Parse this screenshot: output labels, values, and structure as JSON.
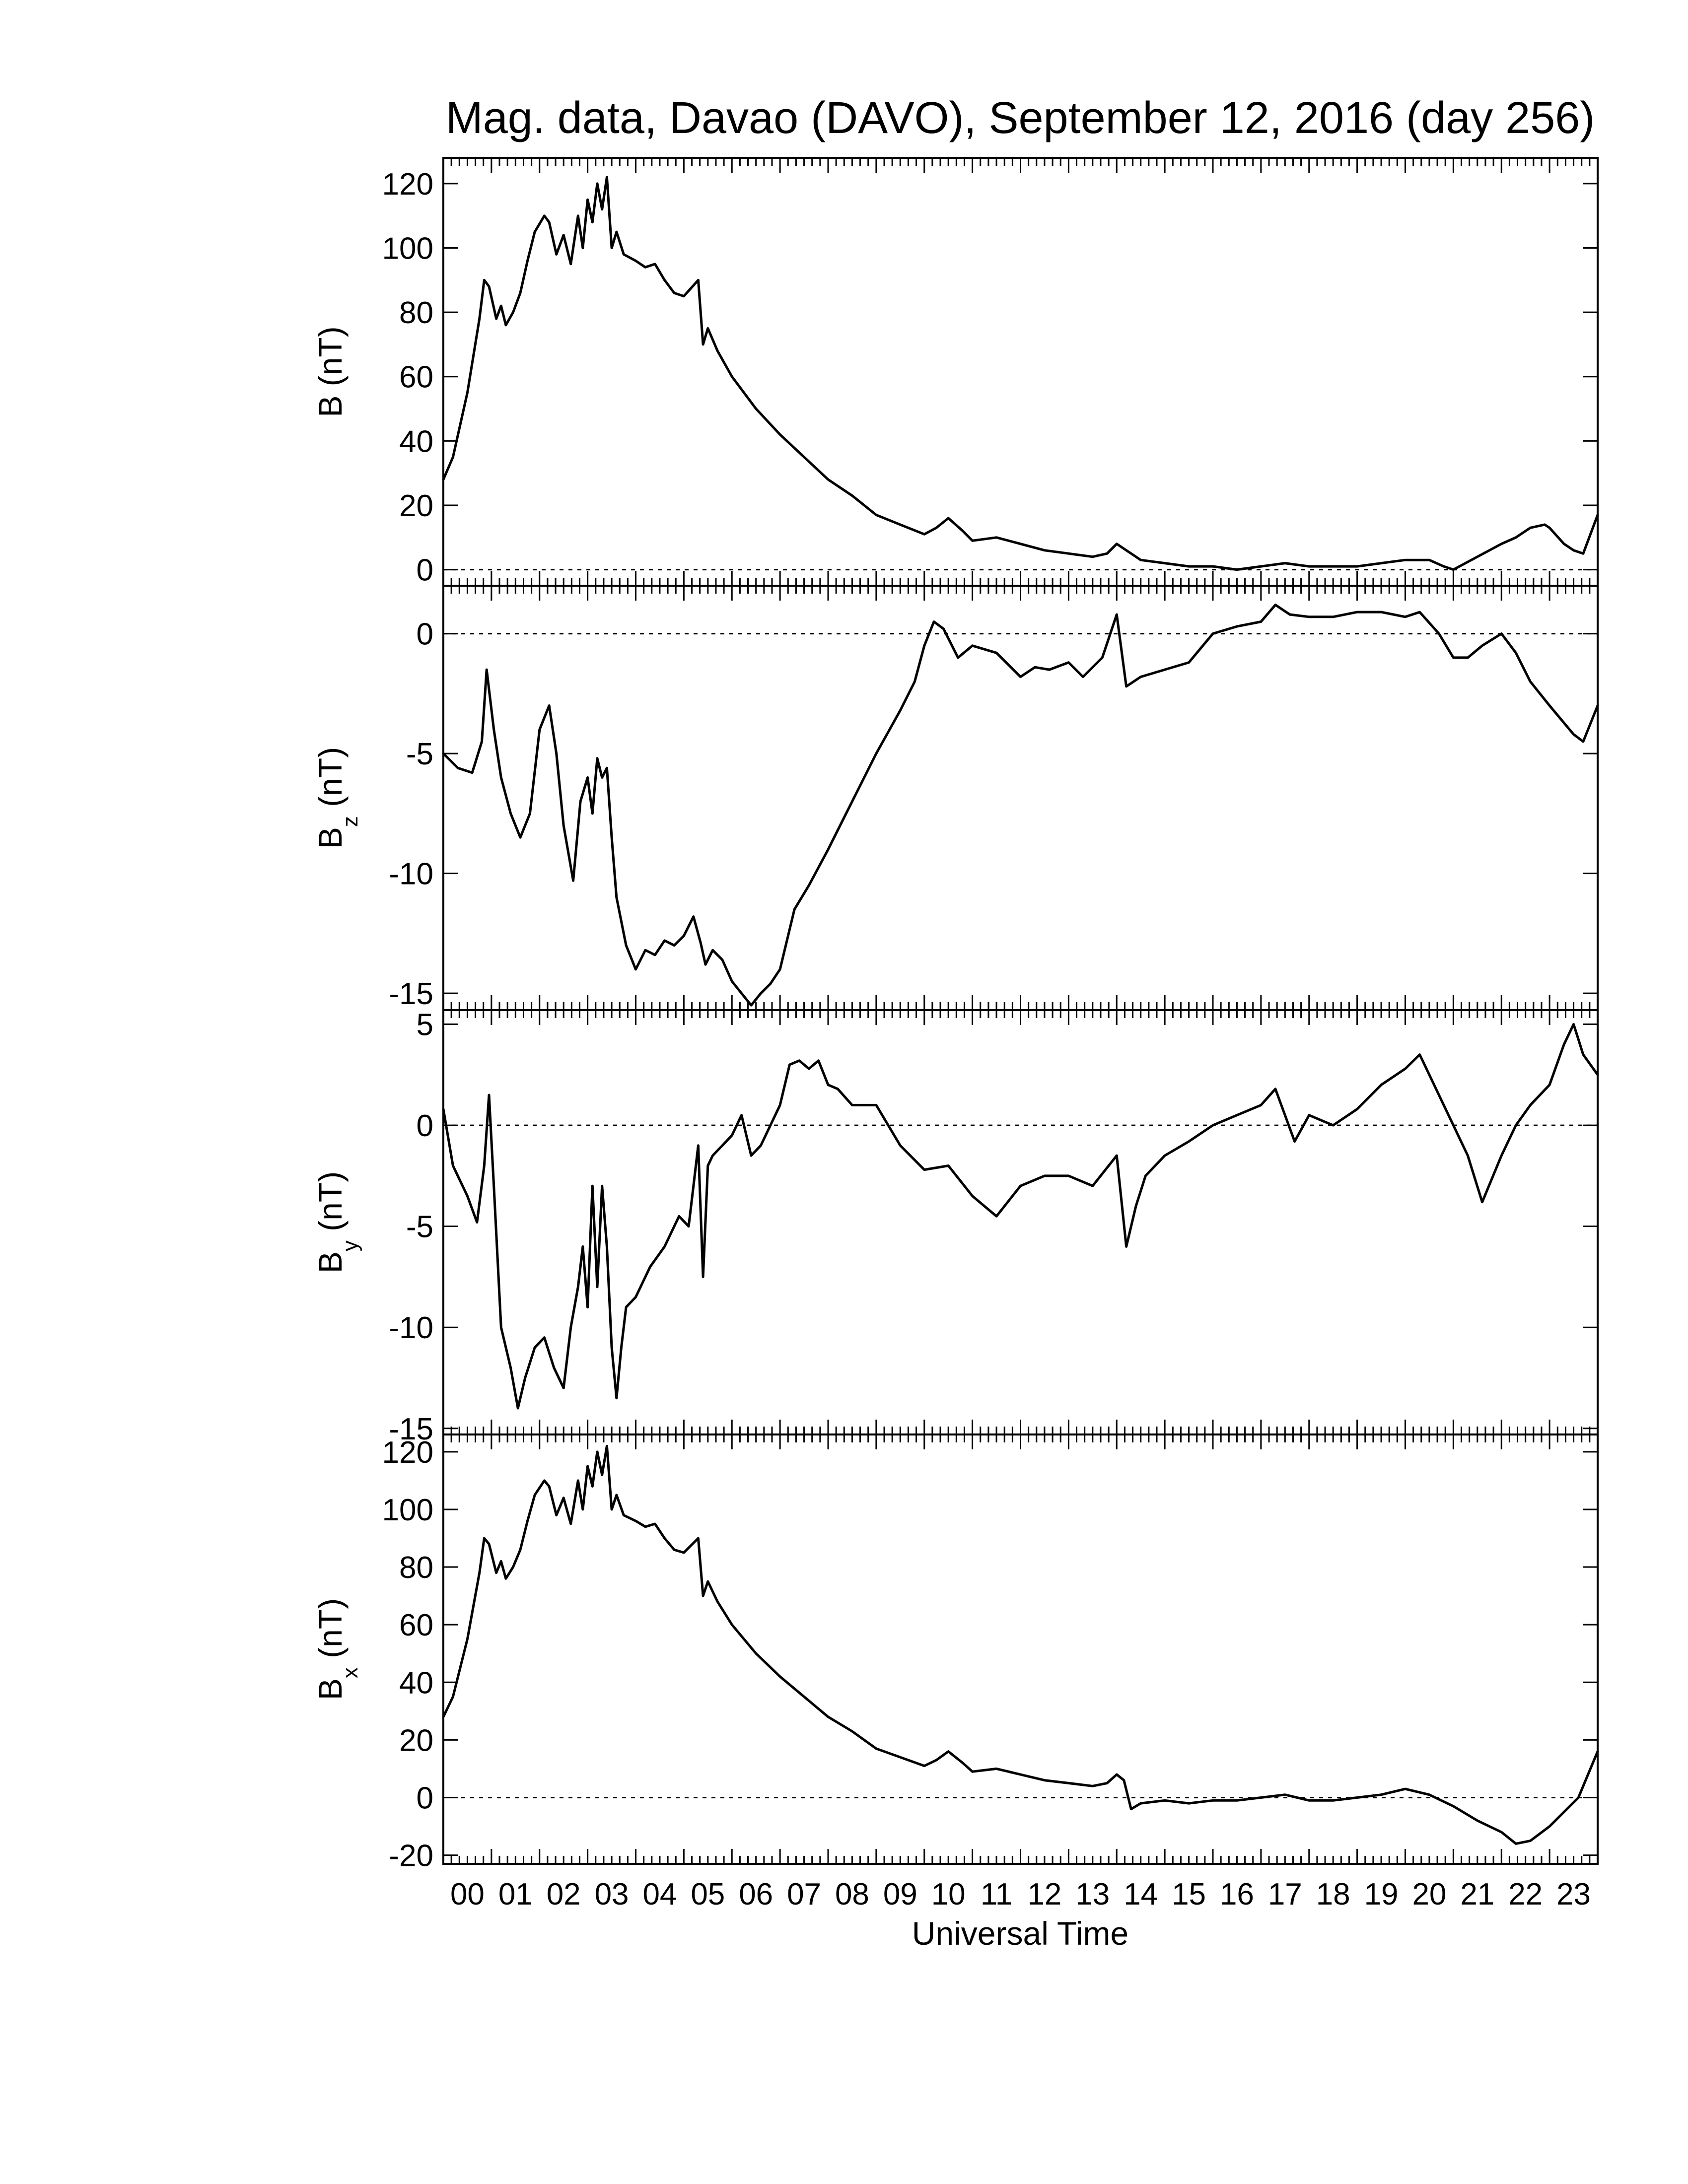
{
  "title": "Mag. data, Davao (DAVO), September 12, 2016 (day 256)",
  "xlabel": "Universal Time",
  "x_tick_labels": [
    "00",
    "01",
    "02",
    "03",
    "04",
    "05",
    "06",
    "07",
    "08",
    "09",
    "10",
    "11",
    "12",
    "13",
    "14",
    "15",
    "16",
    "17",
    "18",
    "19",
    "20",
    "21",
    "22",
    "23"
  ],
  "chart_data": [
    {
      "type": "line",
      "panel": "B",
      "ylabel": "B (nT)",
      "ylabel_main": "B (nT)",
      "ylabel_sub": "",
      "xlim": [
        0,
        24
      ],
      "ylim": [
        -5,
        128
      ],
      "yticks": [
        0,
        20,
        40,
        60,
        80,
        100,
        120
      ],
      "zero_line": true,
      "series": [
        {
          "x": [
            0,
            0.2,
            0.5,
            0.75,
            0.85,
            0.95,
            1.1,
            1.2,
            1.3,
            1.45,
            1.6,
            1.75,
            1.9,
            2.1,
            2.2,
            2.35,
            2.5,
            2.65,
            2.8,
            2.9,
            3.0,
            3.1,
            3.2,
            3.3,
            3.4,
            3.5,
            3.6,
            3.75,
            4.0,
            4.2,
            4.4,
            4.6,
            4.8,
            5.0,
            5.3,
            5.4,
            5.5,
            5.7,
            6.0,
            6.5,
            7.0,
            7.5,
            8.0,
            8.5,
            9.0,
            9.5,
            10.0,
            10.25,
            10.5,
            10.8,
            11.0,
            11.5,
            12.0,
            12.5,
            13.0,
            13.5,
            13.8,
            14.0,
            14.2,
            14.5,
            15.0,
            15.5,
            16.0,
            16.5,
            17.0,
            17.5,
            18.0,
            18.5,
            19.0,
            19.5,
            20.0,
            20.5,
            20.8,
            21.0,
            21.5,
            22.0,
            22.3,
            22.6,
            22.9,
            23.0,
            23.3,
            23.5,
            23.7,
            24.0
          ],
          "y": [
            28,
            35,
            55,
            78,
            90,
            88,
            78,
            82,
            76,
            80,
            86,
            96,
            105,
            110,
            108,
            98,
            104,
            95,
            110,
            100,
            115,
            108,
            120,
            112,
            122,
            100,
            105,
            98,
            96,
            94,
            95,
            90,
            86,
            85,
            90,
            70,
            75,
            68,
            60,
            50,
            42,
            35,
            28,
            23,
            17,
            14,
            11,
            13,
            16,
            12,
            9,
            10,
            8,
            6,
            5,
            4,
            5,
            8,
            6,
            3,
            2,
            1,
            1,
            0,
            1,
            2,
            1,
            1,
            1,
            2,
            3,
            3,
            1,
            0,
            4,
            8,
            10,
            13,
            14,
            13,
            8,
            6,
            5,
            17
          ]
        }
      ]
    },
    {
      "type": "line",
      "panel": "Bz",
      "ylabel": "Bz (nT)",
      "ylabel_main": "B",
      "ylabel_sub": "z",
      "ylabel_unit": "(nT)",
      "xlim": [
        0,
        24
      ],
      "ylim": [
        -15.7,
        2.0
      ],
      "yticks": [
        0,
        -5,
        -10,
        -15
      ],
      "zero_line": true,
      "series": [
        {
          "x": [
            0,
            0.3,
            0.6,
            0.8,
            0.9,
            1.05,
            1.2,
            1.4,
            1.6,
            1.8,
            2.0,
            2.2,
            2.35,
            2.5,
            2.7,
            2.85,
            3.0,
            3.1,
            3.2,
            3.3,
            3.4,
            3.5,
            3.6,
            3.8,
            4.0,
            4.2,
            4.4,
            4.6,
            4.8,
            5.0,
            5.2,
            5.35,
            5.45,
            5.6,
            5.8,
            6.0,
            6.2,
            6.4,
            6.6,
            6.8,
            7.0,
            7.3,
            7.6,
            8.0,
            8.5,
            9.0,
            9.5,
            9.8,
            10.0,
            10.2,
            10.4,
            10.7,
            11.0,
            11.5,
            12.0,
            12.3,
            12.6,
            13.0,
            13.3,
            13.7,
            14.0,
            14.2,
            14.5,
            15.0,
            15.5,
            16.0,
            16.5,
            17.0,
            17.3,
            17.6,
            18.0,
            18.5,
            19.0,
            19.5,
            20.0,
            20.3,
            20.7,
            21.0,
            21.3,
            21.6,
            22.0,
            22.3,
            22.6,
            23.0,
            23.5,
            23.7,
            24.0
          ],
          "y": [
            -5,
            -5.6,
            -5.8,
            -4.5,
            -1.5,
            -4.0,
            -6.0,
            -7.5,
            -8.5,
            -7.5,
            -4.0,
            -3.0,
            -5.0,
            -8.0,
            -10.3,
            -7.0,
            -6.0,
            -7.5,
            -5.2,
            -6.0,
            -5.6,
            -8.5,
            -11.0,
            -13.0,
            -14.0,
            -13.2,
            -13.4,
            -12.8,
            -13.0,
            -12.6,
            -11.8,
            -12.9,
            -13.8,
            -13.2,
            -13.6,
            -14.5,
            -15.0,
            -15.5,
            -15.0,
            -14.6,
            -14.0,
            -11.5,
            -10.5,
            -9.0,
            -7.0,
            -5.0,
            -3.2,
            -2.0,
            -0.5,
            0.5,
            0.2,
            -1.0,
            -0.5,
            -0.8,
            -1.8,
            -1.4,
            -1.5,
            -1.2,
            -1.8,
            -1.0,
            0.8,
            -2.2,
            -1.8,
            -1.5,
            -1.2,
            0,
            0.3,
            0.5,
            1.2,
            0.8,
            0.7,
            0.7,
            0.9,
            0.9,
            0.7,
            0.9,
            0,
            -1.0,
            -1.0,
            -0.5,
            0,
            -0.8,
            -2.0,
            -3.0,
            -4.2,
            -4.5,
            -3.0
          ]
        }
      ]
    },
    {
      "type": "line",
      "panel": "By",
      "ylabel": "By (nT)",
      "ylabel_main": "B",
      "ylabel_sub": "y",
      "ylabel_unit": "(nT)",
      "xlim": [
        0,
        24
      ],
      "ylim": [
        -15.3,
        5.7
      ],
      "yticks": [
        5,
        0,
        -5,
        -10,
        -15
      ],
      "zero_line": true,
      "series": [
        {
          "x": [
            0,
            0.2,
            0.5,
            0.7,
            0.85,
            0.95,
            1.05,
            1.2,
            1.4,
            1.55,
            1.7,
            1.9,
            2.1,
            2.3,
            2.5,
            2.65,
            2.8,
            2.9,
            3.0,
            3.1,
            3.2,
            3.3,
            3.4,
            3.5,
            3.6,
            3.7,
            3.8,
            4.0,
            4.3,
            4.6,
            4.9,
            5.1,
            5.2,
            5.3,
            5.4,
            5.5,
            5.6,
            5.8,
            6.0,
            6.2,
            6.4,
            6.6,
            6.8,
            7.0,
            7.2,
            7.4,
            7.6,
            7.8,
            8.0,
            8.2,
            8.5,
            9.0,
            9.5,
            10.0,
            10.5,
            11.0,
            11.5,
            12.0,
            12.5,
            13.0,
            13.5,
            14.0,
            14.2,
            14.4,
            14.6,
            15.0,
            15.5,
            16.0,
            16.5,
            17.0,
            17.3,
            17.5,
            17.7,
            18.0,
            18.5,
            19.0,
            19.5,
            20.0,
            20.3,
            20.6,
            21.0,
            21.3,
            21.6,
            22.0,
            22.3,
            22.6,
            23.0,
            23.3,
            23.5,
            23.7,
            24.0
          ],
          "y": [
            0.8,
            -2.0,
            -3.5,
            -4.8,
            -2.0,
            1.5,
            -3.0,
            -10.0,
            -12.0,
            -14.0,
            -12.5,
            -11.0,
            -10.5,
            -12.0,
            -13.0,
            -10.0,
            -8.0,
            -6.0,
            -9.0,
            -3.0,
            -8.0,
            -3.0,
            -6.0,
            -11.0,
            -13.5,
            -11.0,
            -9.0,
            -8.5,
            -7.0,
            -6.0,
            -4.5,
            -5.0,
            -3.0,
            -1.0,
            -7.5,
            -2.0,
            -1.5,
            -1.0,
            -0.5,
            0.5,
            -1.5,
            -1.0,
            0,
            1.0,
            3.0,
            3.2,
            2.8,
            3.2,
            2.0,
            1.8,
            1.0,
            1.0,
            -1.0,
            -2.2,
            -2.0,
            -3.5,
            -4.5,
            -3.0,
            -2.5,
            -2.5,
            -3.0,
            -1.5,
            -6.0,
            -4.0,
            -2.5,
            -1.5,
            -0.8,
            0,
            0.5,
            1.0,
            1.8,
            0.5,
            -0.8,
            0.5,
            0,
            0.8,
            2.0,
            2.8,
            3.5,
            2.0,
            0,
            -1.5,
            -3.8,
            -1.5,
            0,
            1.0,
            2.0,
            4.0,
            5.0,
            3.5,
            2.5
          ]
        }
      ]
    },
    {
      "type": "line",
      "panel": "Bx",
      "ylabel": "Bx (nT)",
      "ylabel_main": "B",
      "ylabel_sub": "x",
      "ylabel_unit": "(nT)",
      "xlim": [
        0,
        24
      ],
      "ylim": [
        -23,
        126
      ],
      "yticks": [
        120,
        100,
        80,
        60,
        40,
        20,
        0,
        -20
      ],
      "zero_line": true,
      "series": [
        {
          "x": [
            0,
            0.2,
            0.5,
            0.75,
            0.85,
            0.95,
            1.1,
            1.2,
            1.3,
            1.45,
            1.6,
            1.75,
            1.9,
            2.1,
            2.2,
            2.35,
            2.5,
            2.65,
            2.8,
            2.9,
            3.0,
            3.1,
            3.2,
            3.3,
            3.4,
            3.5,
            3.6,
            3.75,
            4.0,
            4.2,
            4.4,
            4.6,
            4.8,
            5.0,
            5.3,
            5.4,
            5.5,
            5.7,
            6.0,
            6.5,
            7.0,
            7.5,
            8.0,
            8.5,
            9.0,
            9.5,
            10.0,
            10.25,
            10.5,
            10.8,
            11.0,
            11.5,
            12.0,
            12.5,
            13.0,
            13.5,
            13.8,
            14.0,
            14.15,
            14.3,
            14.5,
            15.0,
            15.5,
            16.0,
            16.5,
            17.0,
            17.5,
            18.0,
            18.5,
            19.0,
            19.5,
            20.0,
            20.5,
            21.0,
            21.5,
            22.0,
            22.3,
            22.6,
            23.0,
            23.3,
            23.6,
            23.8,
            24.0
          ],
          "y": [
            28,
            35,
            55,
            78,
            90,
            88,
            78,
            82,
            76,
            80,
            86,
            96,
            105,
            110,
            108,
            98,
            104,
            95,
            110,
            100,
            115,
            108,
            120,
            112,
            122,
            100,
            105,
            98,
            96,
            94,
            95,
            90,
            86,
            85,
            90,
            70,
            75,
            68,
            60,
            50,
            42,
            35,
            28,
            23,
            17,
            14,
            11,
            13,
            16,
            12,
            9,
            10,
            8,
            6,
            5,
            4,
            5,
            8,
            6,
            -4,
            -2,
            -1,
            -2,
            -1,
            -1,
            0,
            1,
            -1,
            -1,
            0,
            1,
            3,
            1,
            -3,
            -8,
            -12,
            -16,
            -15,
            -10,
            -5,
            0,
            8,
            16
          ]
        }
      ]
    }
  ]
}
